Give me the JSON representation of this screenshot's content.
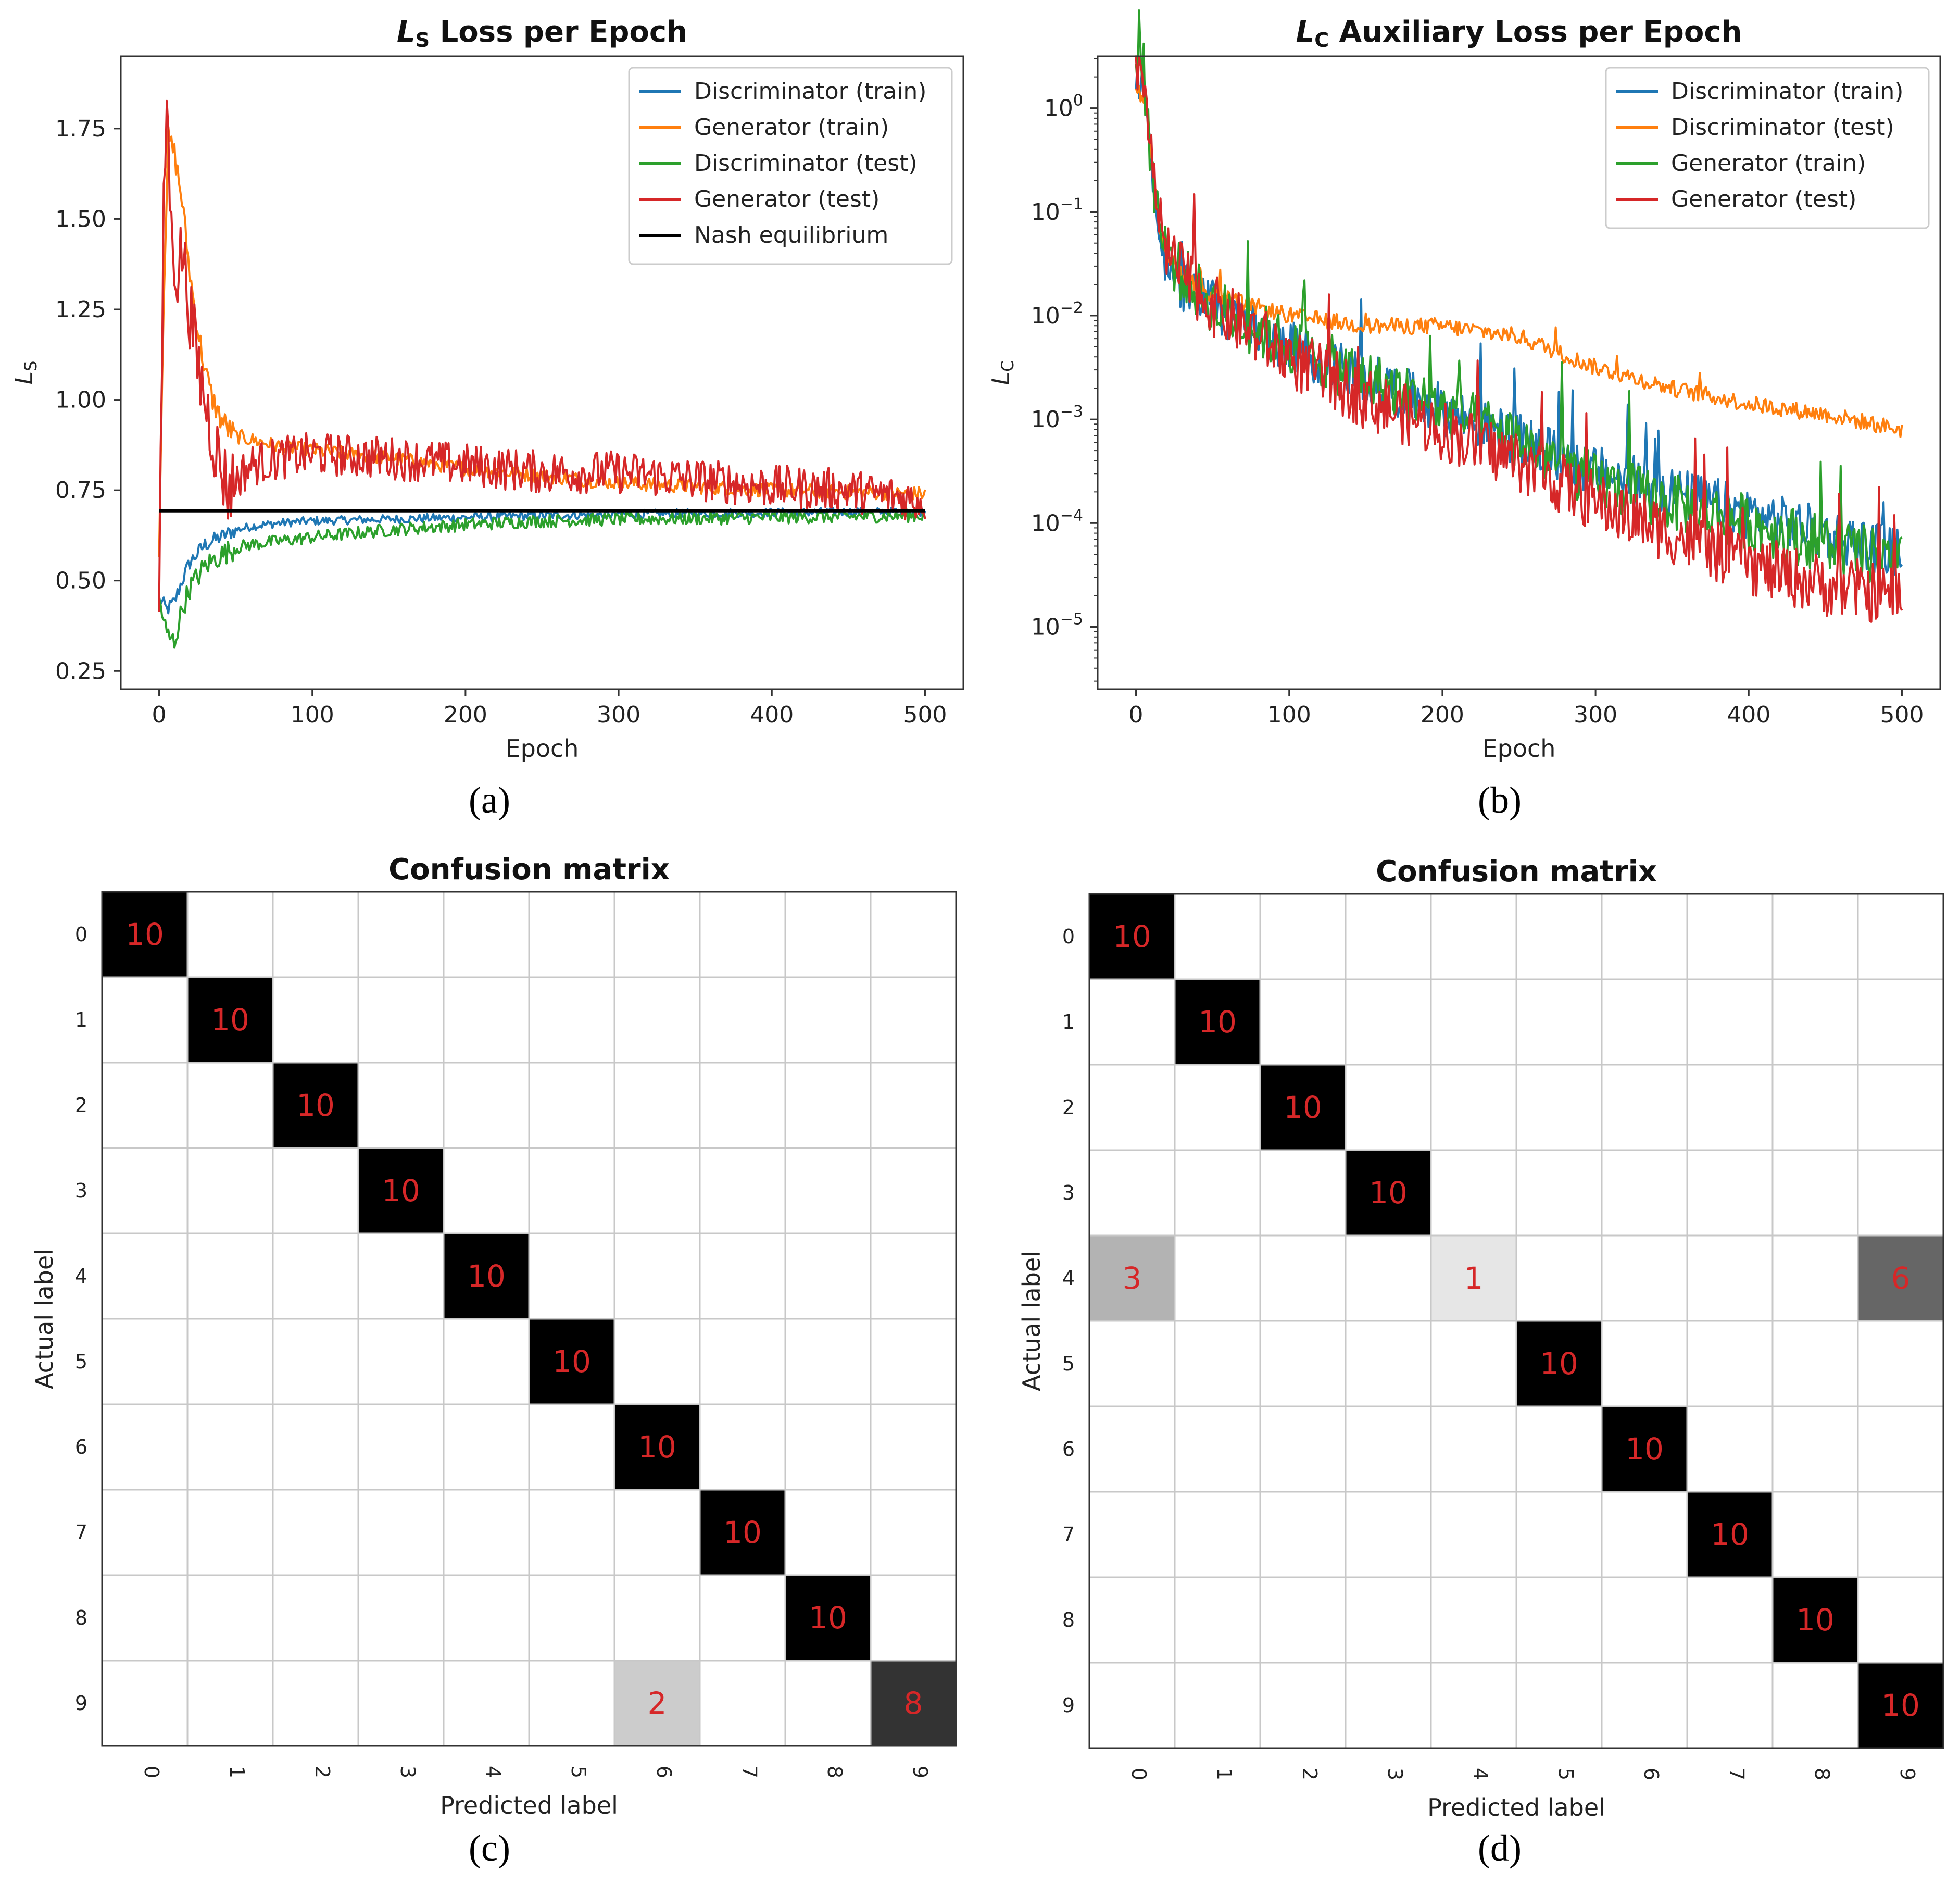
{
  "panel_labels": [
    "(a)",
    "(b)",
    "(c)",
    "(d)"
  ],
  "colors": {
    "blue": "#1f77b4",
    "orange": "#ff7f0e",
    "green": "#2ca02c",
    "red": "#d62728",
    "black": "#000000",
    "cell_text": "#d62728"
  },
  "chart_data": [
    {
      "id": "a",
      "type": "line",
      "title_main": "L",
      "title_sub": "S",
      "title_rest": " Loss per Epoch",
      "xlabel": "Epoch",
      "ylabel_main": "L",
      "ylabel_sub": "S",
      "xlim": [
        -25,
        525
      ],
      "ylim": [
        0.2,
        1.95
      ],
      "xticks": [
        0,
        100,
        200,
        300,
        400,
        500
      ],
      "yticks": [
        0.25,
        0.5,
        0.75,
        1.0,
        1.25,
        1.5,
        1.75
      ],
      "ytick_labels": [
        "0.25",
        "0.50",
        "0.75",
        "1.00",
        "1.25",
        "1.50",
        "1.75"
      ],
      "legend_position": "upper-right",
      "series": [
        {
          "name": "Discriminator (train)",
          "color": "#1f77b4",
          "x": [
            0,
            5,
            10,
            15,
            20,
            30,
            40,
            50,
            60,
            80,
            100,
            150,
            200,
            250,
            300,
            350,
            400,
            450,
            500
          ],
          "y": [
            0.45,
            0.42,
            0.44,
            0.5,
            0.55,
            0.6,
            0.62,
            0.64,
            0.65,
            0.66,
            0.665,
            0.67,
            0.675,
            0.68,
            0.683,
            0.686,
            0.688,
            0.69,
            0.69
          ],
          "noise": 0.012
        },
        {
          "name": "Generator (train)",
          "color": "#ff7f0e",
          "x": [
            0,
            3,
            6,
            10,
            15,
            20,
            25,
            30,
            35,
            40,
            45,
            50,
            60,
            80,
            100,
            150,
            200,
            250,
            300,
            350,
            400,
            450,
            500
          ],
          "y": [
            0.6,
            1.3,
            1.72,
            1.68,
            1.55,
            1.35,
            1.2,
            1.08,
            1.0,
            0.95,
            0.92,
            0.9,
            0.89,
            0.87,
            0.86,
            0.84,
            0.81,
            0.79,
            0.77,
            0.76,
            0.75,
            0.745,
            0.74
          ],
          "noise": 0.02
        },
        {
          "name": "Discriminator (test)",
          "color": "#2ca02c",
          "x": [
            0,
            5,
            10,
            15,
            20,
            30,
            40,
            50,
            60,
            80,
            100,
            150,
            200,
            250,
            300,
            350,
            400,
            450,
            500
          ],
          "y": [
            0.45,
            0.35,
            0.33,
            0.42,
            0.48,
            0.54,
            0.57,
            0.59,
            0.6,
            0.61,
            0.62,
            0.64,
            0.655,
            0.665,
            0.67,
            0.672,
            0.675,
            0.677,
            0.68
          ],
          "noise": 0.018
        },
        {
          "name": "Generator (test)",
          "color": "#d62728",
          "x": [
            0,
            3,
            5,
            8,
            12,
            15,
            20,
            25,
            30,
            35,
            40,
            45,
            50,
            60,
            80,
            100,
            150,
            200,
            250,
            300,
            350,
            400,
            450,
            500
          ],
          "y": [
            0.4,
            1.5,
            1.85,
            1.45,
            1.35,
            1.42,
            1.25,
            1.1,
            1.0,
            0.9,
            0.82,
            0.75,
            0.78,
            0.82,
            0.84,
            0.85,
            0.84,
            0.82,
            0.8,
            0.8,
            0.78,
            0.76,
            0.75,
            0.72
          ],
          "noise": 0.06
        },
        {
          "name": "Nash equilibrium",
          "color": "#000000",
          "x": [
            0,
            500
          ],
          "y": [
            0.693,
            0.693
          ],
          "noise": 0
        }
      ]
    },
    {
      "id": "b",
      "type": "line",
      "yscale": "log",
      "title_main": "L",
      "title_sub": "C",
      "title_rest": " Auxiliary Loss per Epoch",
      "xlabel": "Epoch",
      "ylabel_main": "L",
      "ylabel_sub": "C",
      "xlim": [
        -25,
        525
      ],
      "ylim_log10": [
        -5.6,
        0.5
      ],
      "xticks": [
        0,
        100,
        200,
        300,
        400,
        500
      ],
      "yticks_log10": [
        0,
        -1,
        -2,
        -3,
        -4,
        -5
      ],
      "ytick_base": "10",
      "ytick_exponents": [
        "0",
        "−1",
        "−2",
        "−3",
        "−4",
        "−5"
      ],
      "legend_position": "upper-right",
      "series": [
        {
          "name": "Discriminator (train)",
          "color": "#1f77b4",
          "x": [
            0,
            5,
            10,
            15,
            20,
            30,
            50,
            100,
            150,
            200,
            250,
            300,
            350,
            400,
            450,
            500
          ],
          "y_log10": [
            0.3,
            0.3,
            -0.6,
            -1.2,
            -1.5,
            -1.7,
            -1.9,
            -2.3,
            -2.6,
            -2.9,
            -3.2,
            -3.5,
            -3.7,
            -3.9,
            -4.1,
            -4.3
          ],
          "noise": 0.25
        },
        {
          "name": "Discriminator (test)",
          "color": "#ff7f0e",
          "x": [
            0,
            5,
            10,
            15,
            20,
            30,
            50,
            100,
            150,
            200,
            250,
            300,
            350,
            400,
            450,
            500
          ],
          "y_log10": [
            0.2,
            0.1,
            -0.5,
            -1.1,
            -1.4,
            -1.6,
            -1.8,
            -2.0,
            -2.1,
            -2.1,
            -2.2,
            -2.5,
            -2.7,
            -2.85,
            -2.95,
            -3.1
          ],
          "noise": 0.08
        },
        {
          "name": "Generator (train)",
          "color": "#2ca02c",
          "x": [
            0,
            5,
            10,
            15,
            20,
            30,
            50,
            100,
            150,
            200,
            250,
            300,
            350,
            400,
            450,
            500
          ],
          "y_log10": [
            0.4,
            0.35,
            -0.5,
            -1.1,
            -1.4,
            -1.6,
            -1.9,
            -2.3,
            -2.6,
            -2.9,
            -3.2,
            -3.6,
            -3.8,
            -4.0,
            -4.2,
            -4.4
          ],
          "noise": 0.28
        },
        {
          "name": "Generator (test)",
          "color": "#d62728",
          "x": [
            0,
            5,
            10,
            15,
            20,
            30,
            50,
            100,
            150,
            200,
            250,
            300,
            350,
            400,
            450,
            500
          ],
          "y_log10": [
            0.4,
            0.35,
            -0.5,
            -1.1,
            -1.4,
            -1.6,
            -1.9,
            -2.4,
            -2.8,
            -3.1,
            -3.4,
            -3.8,
            -4.1,
            -4.4,
            -4.6,
            -4.7
          ],
          "noise": 0.3
        }
      ]
    },
    {
      "id": "c",
      "type": "heatmap",
      "title": "Confusion matrix",
      "xlabel": "Predicted label",
      "ylabel": "Actual label",
      "labels": [
        "0",
        "1",
        "2",
        "3",
        "4",
        "5",
        "6",
        "7",
        "8",
        "9"
      ],
      "vmax": 10,
      "matrix": [
        [
          10,
          0,
          0,
          0,
          0,
          0,
          0,
          0,
          0,
          0
        ],
        [
          0,
          10,
          0,
          0,
          0,
          0,
          0,
          0,
          0,
          0
        ],
        [
          0,
          0,
          10,
          0,
          0,
          0,
          0,
          0,
          0,
          0
        ],
        [
          0,
          0,
          0,
          10,
          0,
          0,
          0,
          0,
          0,
          0
        ],
        [
          0,
          0,
          0,
          0,
          10,
          0,
          0,
          0,
          0,
          0
        ],
        [
          0,
          0,
          0,
          0,
          0,
          10,
          0,
          0,
          0,
          0
        ],
        [
          0,
          0,
          0,
          0,
          0,
          0,
          10,
          0,
          0,
          0
        ],
        [
          0,
          0,
          0,
          0,
          0,
          0,
          0,
          10,
          0,
          0
        ],
        [
          0,
          0,
          0,
          0,
          0,
          0,
          0,
          0,
          10,
          0
        ],
        [
          0,
          0,
          0,
          0,
          0,
          0,
          2,
          0,
          0,
          8
        ]
      ]
    },
    {
      "id": "d",
      "type": "heatmap",
      "title": "Confusion matrix",
      "xlabel": "Predicted label",
      "ylabel": "Actual label",
      "labels": [
        "0",
        "1",
        "2",
        "3",
        "4",
        "5",
        "6",
        "7",
        "8",
        "9"
      ],
      "vmax": 10,
      "matrix": [
        [
          10,
          0,
          0,
          0,
          0,
          0,
          0,
          0,
          0,
          0
        ],
        [
          0,
          10,
          0,
          0,
          0,
          0,
          0,
          0,
          0,
          0
        ],
        [
          0,
          0,
          10,
          0,
          0,
          0,
          0,
          0,
          0,
          0
        ],
        [
          0,
          0,
          0,
          10,
          0,
          0,
          0,
          0,
          0,
          0
        ],
        [
          3,
          0,
          0,
          0,
          1,
          0,
          0,
          0,
          0,
          6
        ],
        [
          0,
          0,
          0,
          0,
          0,
          10,
          0,
          0,
          0,
          0
        ],
        [
          0,
          0,
          0,
          0,
          0,
          0,
          10,
          0,
          0,
          0
        ],
        [
          0,
          0,
          0,
          0,
          0,
          0,
          0,
          10,
          0,
          0
        ],
        [
          0,
          0,
          0,
          0,
          0,
          0,
          0,
          0,
          10,
          0
        ],
        [
          0,
          0,
          0,
          0,
          0,
          0,
          0,
          0,
          0,
          10
        ]
      ]
    }
  ]
}
